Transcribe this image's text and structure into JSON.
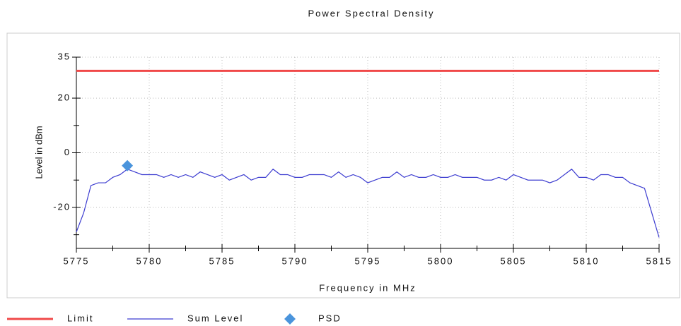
{
  "chart_data": {
    "type": "line",
    "title": "Power Spectral Density",
    "xlabel": "Frequency in MHz",
    "ylabel": "Level in dBm",
    "xlim": [
      5775,
      5815
    ],
    "xticks": [
      5775,
      5780,
      5785,
      5790,
      5795,
      5800,
      5805,
      5810,
      5815
    ],
    "minor_xticks": [
      5777.5,
      5782.5,
      5787.5,
      5792.5,
      5797.5,
      5802.5,
      5807.5,
      5812.5
    ],
    "ylim": [
      -35,
      35
    ],
    "yticks": [
      -20,
      0,
      20,
      35
    ],
    "minor_yticks": [
      -30,
      -10,
      10
    ],
    "grid": true,
    "series": [
      {
        "name": "Limit",
        "color": "#f04848",
        "x": [
          5775,
          5815
        ],
        "values": [
          30,
          30
        ]
      },
      {
        "name": "Sum Level",
        "color": "#3c3cd0",
        "x": [
          5775,
          5775.5,
          5776,
          5776.5,
          5777,
          5777.5,
          5778,
          5778.5,
          5779,
          5779.5,
          5780,
          5780.5,
          5781,
          5781.5,
          5782,
          5782.5,
          5783,
          5783.5,
          5784,
          5784.5,
          5785,
          5785.5,
          5786,
          5786.5,
          5787,
          5787.5,
          5788,
          5788.5,
          5789,
          5789.5,
          5790,
          5790.5,
          5791,
          5791.5,
          5792,
          5792.5,
          5793,
          5793.5,
          5794,
          5794.5,
          5795,
          5795.5,
          5796,
          5796.5,
          5797,
          5797.5,
          5798,
          5798.5,
          5799,
          5799.5,
          5800,
          5800.5,
          5801,
          5801.5,
          5802,
          5802.5,
          5803,
          5803.5,
          5804,
          5804.5,
          5805,
          5805.5,
          5806,
          5806.5,
          5807,
          5807.5,
          5808,
          5808.5,
          5809,
          5809.5,
          5810,
          5810.5,
          5811,
          5811.5,
          5812,
          5812.5,
          5813,
          5813.5,
          5814,
          5814.5,
          5815
        ],
        "values": [
          -29,
          -22,
          -12,
          -11,
          -11,
          -9,
          -8,
          -6,
          -7,
          -8,
          -8,
          -8,
          -9,
          -8,
          -9,
          -8,
          -9,
          -7,
          -8,
          -9,
          -8,
          -10,
          -9,
          -8,
          -10,
          -9,
          -9,
          -6,
          -8,
          -8,
          -9,
          -9,
          -8,
          -8,
          -8,
          -9,
          -7,
          -9,
          -8,
          -9,
          -11,
          -10,
          -9,
          -9,
          -7,
          -9,
          -8,
          -9,
          -9,
          -8,
          -9,
          -9,
          -8,
          -9,
          -9,
          -9,
          -10,
          -10,
          -9,
          -10,
          -8,
          -9,
          -10,
          -10,
          -10,
          -11,
          -10,
          -8,
          -6,
          -9,
          -9,
          -10,
          -8,
          -8,
          -9,
          -9,
          -11,
          -12,
          -13,
          -22,
          -31
        ]
      },
      {
        "name": "PSD",
        "color": "#4a94dc",
        "marker": "diamond",
        "x": [
          5778.5
        ],
        "values": [
          -4.7
        ]
      }
    ]
  }
}
